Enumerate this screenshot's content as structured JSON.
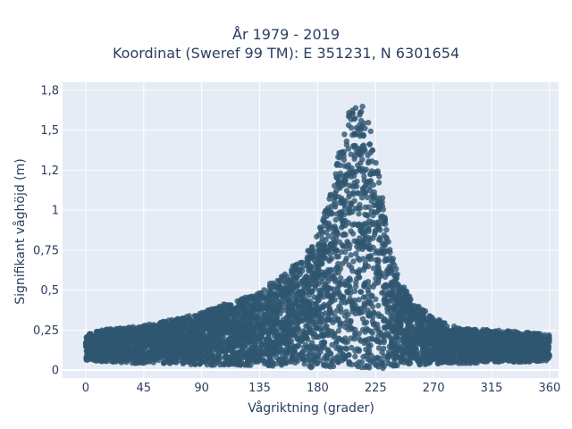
{
  "chart_data": {
    "type": "scatter",
    "title": "År 1979 - 2019",
    "subtitle": "Koordinat (Sweref 99 TM): E 351231, N 6301654",
    "xlabel": "Vågriktning (grader)",
    "ylabel": "Signifikant våghöjd (m)",
    "xlim": [
      -18,
      367
    ],
    "ylim": [
      -0.05,
      1.8
    ],
    "x_ticks": [
      0,
      45,
      90,
      135,
      180,
      225,
      270,
      315,
      360
    ],
    "x_tick_labels": [
      "0",
      "45",
      "90",
      "135",
      "180",
      "225",
      "270",
      "315",
      "360"
    ],
    "y_ticks": [
      0,
      0.25,
      0.5,
      0.75,
      1,
      1.25,
      1.5,
      1.75
    ],
    "y_tick_labels": [
      "0",
      "0,25",
      "0,5",
      "0,75",
      "1",
      "1,2",
      "1,5",
      "1,8"
    ],
    "grid": true,
    "plot_background": "#e5ecf6",
    "marker_color": "#2f5670",
    "envelope": {
      "direction": [
        0,
        20,
        45,
        70,
        90,
        110,
        130,
        150,
        165,
        180,
        190,
        195,
        200,
        205,
        210,
        215,
        220,
        225,
        230,
        235,
        240,
        245,
        255,
        270,
        290,
        315,
        340,
        360
      ],
      "max_height": [
        0.23,
        0.26,
        0.28,
        0.32,
        0.36,
        0.42,
        0.47,
        0.58,
        0.68,
        0.85,
        1.1,
        1.3,
        1.5,
        1.64,
        1.68,
        1.65,
        1.55,
        1.35,
        1.1,
        0.85,
        0.65,
        0.55,
        0.42,
        0.33,
        0.26,
        0.25,
        0.24,
        0.22
      ],
      "min_height": [
        0.06,
        0.05,
        0.04,
        0.04,
        0.03,
        0.03,
        0.03,
        0.02,
        0.02,
        0.01,
        0.01,
        0.01,
        0.01,
        0.01,
        0.01,
        0.01,
        0.01,
        0.01,
        0.01,
        0.02,
        0.02,
        0.03,
        0.03,
        0.04,
        0.04,
        0.05,
        0.05,
        0.06
      ]
    }
  }
}
